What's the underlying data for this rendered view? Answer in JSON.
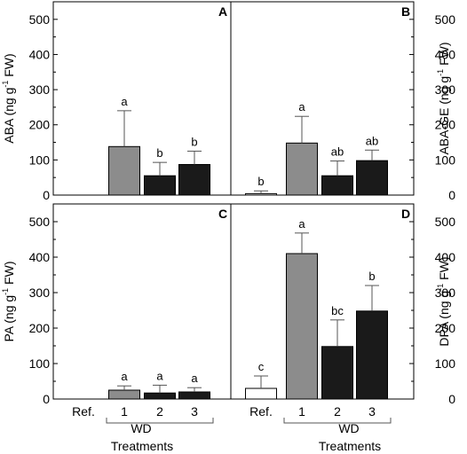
{
  "chart_data": [
    {
      "type": "bar",
      "panel": "A",
      "ylabel": "ABA (ng g",
      "ylabel_sup": "-1",
      "ylabel_tail": " FW)",
      "ylim": [
        0,
        550
      ],
      "yticks": [
        "0",
        "100",
        "200",
        "300",
        "400",
        "500"
      ],
      "categories": [
        "Ref.",
        "1",
        "2",
        "3"
      ],
      "values": [
        0,
        138,
        55,
        87
      ],
      "errors": [
        0,
        102,
        38,
        38
      ],
      "significance": [
        "",
        "a",
        "b",
        "b"
      ],
      "colors": [
        "#ffffff",
        "#8c8c8c",
        "#1a1a1a",
        "#1a1a1a"
      ]
    },
    {
      "type": "bar",
      "panel": "B",
      "ylabel": "ABA-GE (ng g",
      "ylabel_sup": "-1",
      "ylabel_tail": " FW)",
      "ylim": [
        0,
        550
      ],
      "yticks": [
        "0",
        "100",
        "200",
        "300",
        "400",
        "500"
      ],
      "categories": [
        "Ref.",
        "1",
        "2",
        "3"
      ],
      "values": [
        4,
        148,
        55,
        98
      ],
      "errors": [
        8,
        76,
        42,
        30
      ],
      "significance": [
        "b",
        "a",
        "ab",
        "ab"
      ],
      "colors": [
        "#ffffff",
        "#8c8c8c",
        "#1a1a1a",
        "#1a1a1a"
      ]
    },
    {
      "type": "bar",
      "panel": "C",
      "ylabel": "PA (ng g",
      "ylabel_sup": "-1",
      "ylabel_tail": " FW)",
      "ylim": [
        0,
        550
      ],
      "yticks": [
        "0",
        "100",
        "200",
        "300",
        "400",
        "500"
      ],
      "categories": [
        "Ref.",
        "1",
        "2",
        "3"
      ],
      "values": [
        0,
        25,
        17,
        20
      ],
      "errors": [
        0,
        12,
        22,
        12
      ],
      "significance": [
        "",
        "a",
        "a",
        "a"
      ],
      "colors": [
        "#ffffff",
        "#8c8c8c",
        "#1a1a1a",
        "#1a1a1a"
      ]
    },
    {
      "type": "bar",
      "panel": "D",
      "ylabel": "DPA  (ng g",
      "ylabel_sup": "-1",
      "ylabel_tail": " FW)",
      "ylim": [
        0,
        550
      ],
      "yticks": [
        "0",
        "100",
        "200",
        "300",
        "400",
        "500"
      ],
      "categories": [
        "Ref.",
        "1",
        "2",
        "3"
      ],
      "values": [
        30,
        410,
        148,
        248
      ],
      "errors": [
        35,
        58,
        75,
        72
      ],
      "significance": [
        "c",
        "a",
        "bc",
        "b"
      ],
      "colors": [
        "#ffffff",
        "#8c8c8c",
        "#1a1a1a",
        "#1a1a1a"
      ]
    }
  ],
  "group_label": "WD",
  "xlabel": "Treatments"
}
